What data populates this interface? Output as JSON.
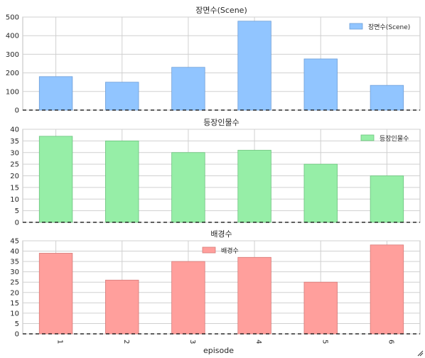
{
  "chart_data": [
    {
      "type": "bar",
      "title": "장면수(Scene)",
      "categories": [
        "1",
        "2",
        "3",
        "4",
        "5",
        "6"
      ],
      "series": [
        {
          "name": "장면수(Scene)",
          "values": [
            180,
            150,
            230,
            478,
            275,
            133
          ]
        }
      ],
      "ylim": [
        0,
        500
      ],
      "yticks": [
        0,
        100,
        200,
        300,
        400,
        500
      ],
      "grid": true,
      "legend": "top-right",
      "color": "#91c5ff",
      "edge_color": "#6f9fd8"
    },
    {
      "type": "bar",
      "title": "등장인물수",
      "categories": [
        "1",
        "2",
        "3",
        "4",
        "5",
        "6"
      ],
      "series": [
        {
          "name": "등장인물수",
          "values": [
            37,
            35,
            30,
            31,
            25,
            20
          ]
        }
      ],
      "ylim": [
        0,
        40
      ],
      "yticks": [
        0,
        5,
        10,
        15,
        20,
        25,
        30,
        35,
        40
      ],
      "grid": true,
      "legend": "top-right",
      "color": "#96eea7",
      "edge_color": "#6cc47e"
    },
    {
      "type": "bar",
      "title": "배경수",
      "categories": [
        "1",
        "2",
        "3",
        "4",
        "5",
        "6"
      ],
      "series": [
        {
          "name": "배경수",
          "values": [
            39,
            26,
            35,
            37,
            25,
            43
          ]
        }
      ],
      "ylim": [
        0,
        45
      ],
      "yticks": [
        0,
        5,
        10,
        15,
        20,
        25,
        30,
        35,
        40,
        45
      ],
      "grid": true,
      "legend": "top-center",
      "color": "#ff9f9c",
      "edge_color": "#d77a78",
      "xlabel": "episode"
    }
  ]
}
